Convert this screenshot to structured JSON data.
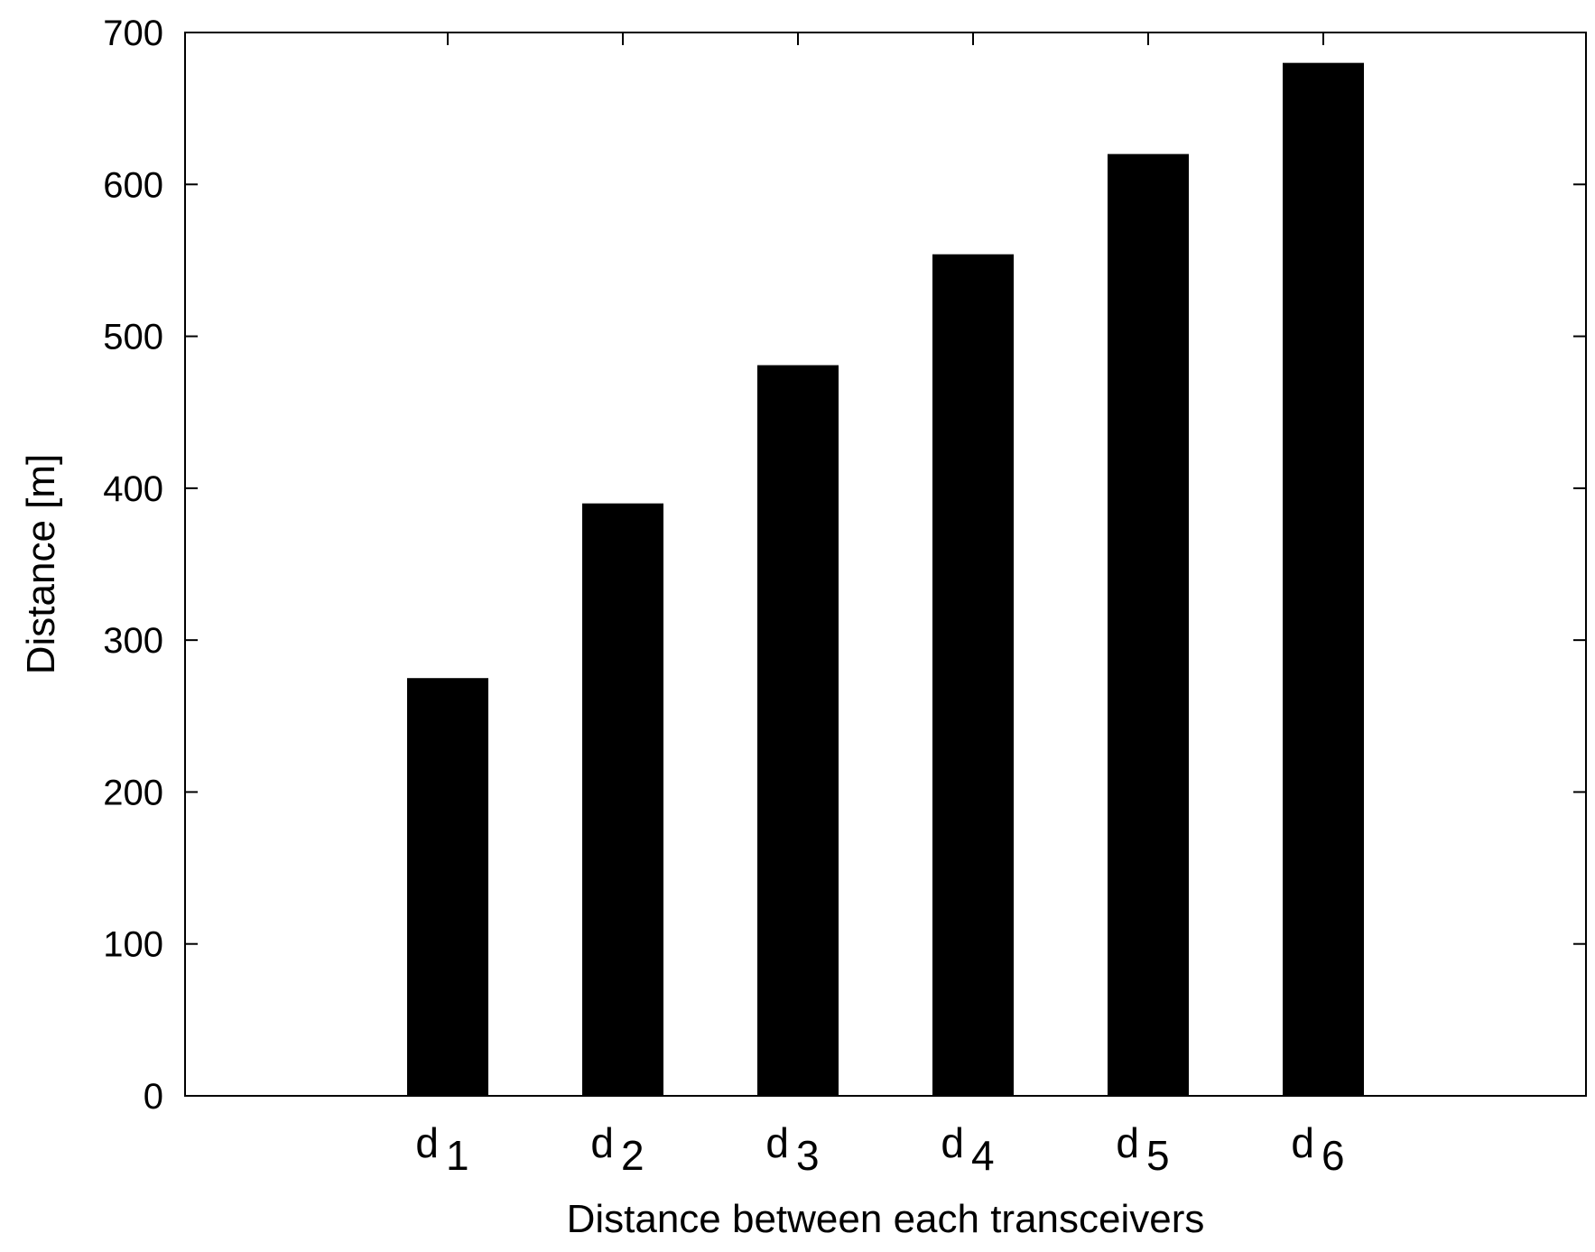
{
  "chart_data": {
    "type": "bar",
    "title": "",
    "xlabel": "Distance between each transceivers",
    "ylabel": "Distance [m]",
    "categories": [
      {
        "base": "d",
        "sub": "1"
      },
      {
        "base": "d",
        "sub": "2"
      },
      {
        "base": "d",
        "sub": "3"
      },
      {
        "base": "d",
        "sub": "4"
      },
      {
        "base": "d",
        "sub": "5"
      },
      {
        "base": "d",
        "sub": "6"
      }
    ],
    "values": [
      275,
      390,
      481,
      554,
      620,
      680
    ],
    "ylim": [
      0,
      700
    ],
    "yticks": [
      0,
      100,
      200,
      300,
      400,
      500,
      600,
      700
    ],
    "grid": false,
    "legend": "none",
    "colors": {
      "bar": "#000000",
      "axis": "#000000",
      "background": "#ffffff"
    }
  }
}
